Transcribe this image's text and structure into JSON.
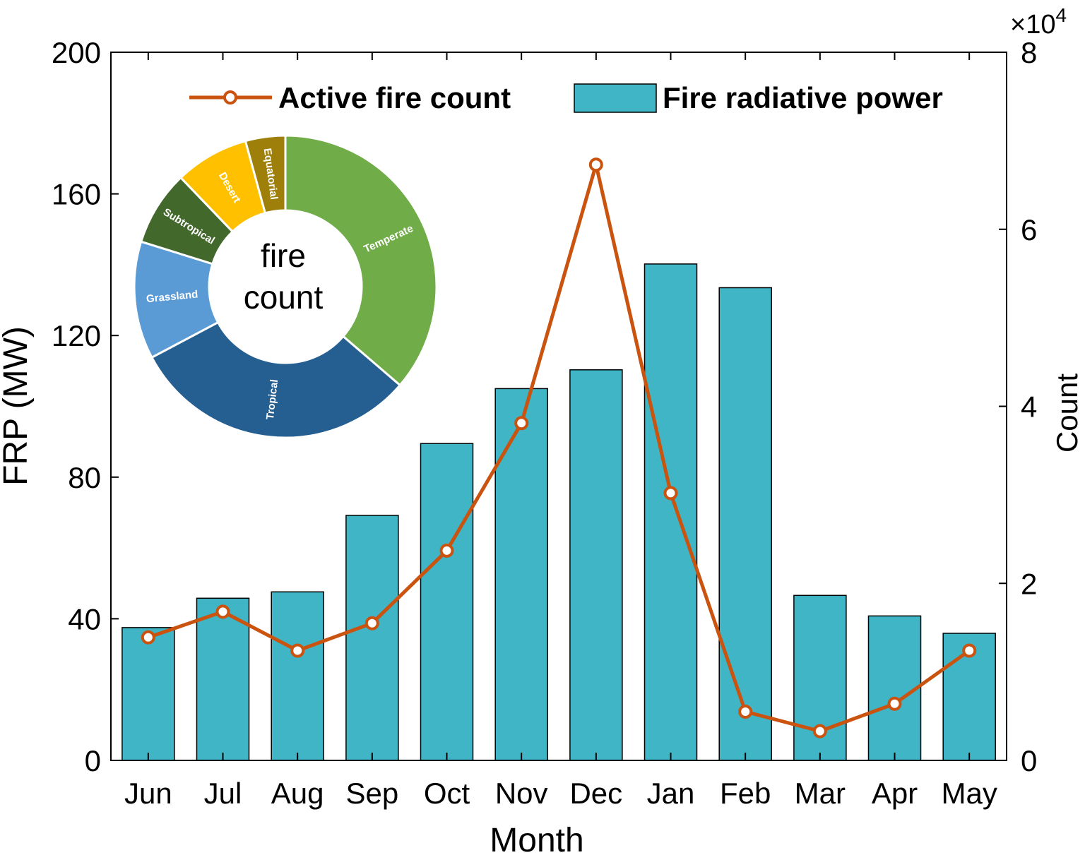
{
  "chart_data": {
    "type": "bar",
    "categories": [
      "Jun",
      "Jul",
      "Aug",
      "Sep",
      "Oct",
      "Nov",
      "Dec",
      "Jan",
      "Feb",
      "Mar",
      "Apr",
      "May"
    ],
    "xlabel": "Month",
    "ylabel": "FRP (MW)",
    "y2label": "Count",
    "ylim": [
      0,
      200
    ],
    "y2lim": [
      0,
      80000
    ],
    "yticks": [
      "0",
      "40",
      "80",
      "120",
      "160",
      "200"
    ],
    "y2ticks": [
      "0",
      "2",
      "4",
      "6",
      "8"
    ],
    "y2_multiplier_base": "×10",
    "y2_multiplier_exp": "4",
    "grid": false,
    "legend_position": "top",
    "series": [
      {
        "name": "Fire radiative power",
        "type": "bar",
        "axis": "left",
        "color": "#40b5c5",
        "values": [
          37.5,
          45.8,
          47.6,
          69.2,
          89.5,
          105.0,
          110.3,
          140.2,
          133.5,
          46.6,
          40.8,
          35.9
        ]
      },
      {
        "name": "Active fire count",
        "type": "line",
        "axis": "right",
        "color": "#c9530f",
        "values": [
          13900,
          16800,
          12400,
          15500,
          23700,
          38100,
          67300,
          30200,
          5500,
          3300,
          6400,
          12400
        ]
      }
    ],
    "inset": {
      "type": "pie",
      "center_label": "fire count",
      "slices": [
        {
          "label": "Temperate",
          "value": 35.8,
          "color": "#70ac47"
        },
        {
          "label": "Tropical",
          "value": 30.5,
          "color": "#255e91"
        },
        {
          "label": "Grassland",
          "value": 12.4,
          "color": "#5b9bd5"
        },
        {
          "label": "Subtropical",
          "value": 7.9,
          "color": "#43682b"
        },
        {
          "label": "Desert",
          "value": 7.8,
          "color": "#ffc000"
        },
        {
          "label": "Equatorial",
          "value": 4.2,
          "color": "#9e7f0a"
        }
      ]
    }
  }
}
